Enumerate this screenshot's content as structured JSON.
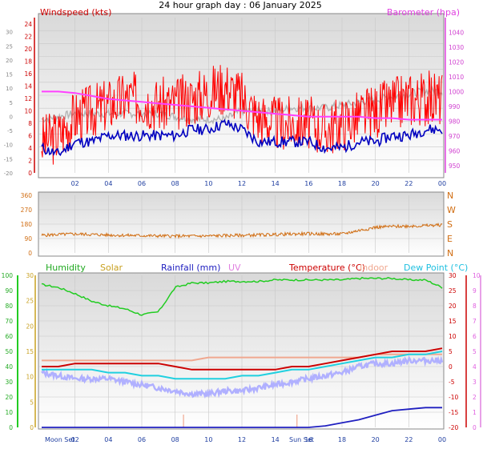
{
  "page": {
    "title": "24 hour graph day : 06 January 2025"
  },
  "x_ticks": [
    "02",
    "04",
    "06",
    "08",
    "10",
    "12",
    "14",
    "16",
    "18",
    "20",
    "22",
    "00"
  ],
  "events": {
    "moon_set": "Moon Set",
    "sun_set": "Sun Set"
  },
  "colors": {
    "wind": "#ff0000",
    "wind_avg": "#0000c0",
    "gust_grey": "#b4b4b4",
    "baro": "#ff40ff",
    "dir": "#d06c10",
    "humidity": "#22cc22",
    "solar": "#c8a020",
    "rain": "#2020c0",
    "uv": "#e080e0",
    "temperature": "#cc0000",
    "indoor": "#f0a890",
    "dewpoint": "#20d0e0",
    "apparent": "#b0b0ff"
  },
  "chart_data": [
    {
      "type": "line",
      "title": "24 hour graph day : 06 January 2025",
      "x_hours": [
        0,
        1,
        2,
        3,
        4,
        5,
        6,
        7,
        8,
        9,
        10,
        11,
        12,
        13,
        14,
        15,
        16,
        17,
        18,
        19,
        20,
        21,
        22,
        23,
        24
      ],
      "left_axis": {
        "label": "Windspeed (kts)",
        "ticks": [
          0,
          2,
          4,
          6,
          8,
          10,
          12,
          14,
          16,
          18,
          20,
          22,
          24
        ],
        "ylim": [
          0,
          25
        ]
      },
      "left_axis_outer": {
        "ticks": [
          -20,
          -15,
          -10,
          -5,
          0,
          5,
          10,
          15,
          20,
          25,
          30
        ],
        "ylim": [
          -20,
          35
        ]
      },
      "right_axis": {
        "label": "Barometer (hpa)",
        "ticks": [
          950,
          960,
          970,
          980,
          990,
          1000,
          1010,
          1020,
          1030,
          1040
        ],
        "ylim": [
          945,
          1050
        ]
      },
      "series": [
        {
          "name": "Windspeed (kts)",
          "axis": "left",
          "values": [
            5,
            6,
            9,
            10,
            11,
            12,
            12,
            11,
            11,
            12,
            13,
            14,
            12,
            9,
            8,
            8,
            8,
            7,
            8,
            9,
            10,
            11,
            12,
            12,
            12
          ]
        },
        {
          "axis": "left",
          "values": [
            4,
            3,
            5,
            5,
            6,
            6,
            6,
            6,
            6,
            7,
            7,
            8,
            7,
            5,
            5,
            5,
            5,
            4,
            4,
            5,
            5,
            6,
            6,
            7,
            7
          ]
        },
        {
          "axis": "outer",
          "values": [
            -1,
            0,
            1,
            1,
            1,
            1,
            1,
            1,
            0,
            -1,
            -1,
            -1,
            2,
            2,
            2,
            3,
            3,
            3,
            4,
            5,
            6,
            7,
            8,
            9,
            9
          ]
        },
        {
          "name": "Barometer (hpa)",
          "axis": "right",
          "values": [
            1000,
            1000,
            999,
            997,
            995,
            994,
            993,
            992,
            991,
            990,
            989,
            988,
            987,
            986,
            985,
            984,
            983,
            983,
            983,
            983,
            982,
            982,
            981,
            981,
            981
          ]
        }
      ]
    },
    {
      "type": "line",
      "x_hours": [
        0,
        1,
        2,
        3,
        4,
        5,
        6,
        7,
        8,
        9,
        10,
        11,
        12,
        13,
        14,
        15,
        16,
        17,
        18,
        19,
        20,
        21,
        22,
        23,
        24
      ],
      "left_axis": {
        "ticks": [
          0,
          90,
          180,
          270,
          360
        ],
        "ylim": [
          0,
          360
        ]
      },
      "right_axis": {
        "ticks": [
          "N",
          "E",
          "S",
          "W",
          "N"
        ]
      },
      "series": [
        {
          "axis": "left",
          "values": [
            110,
            115,
            118,
            115,
            112,
            110,
            108,
            106,
            105,
            105,
            106,
            108,
            110,
            112,
            115,
            118,
            120,
            118,
            118,
            140,
            160,
            165,
            168,
            170,
            175
          ]
        }
      ]
    },
    {
      "type": "line",
      "x_hours": [
        0,
        1,
        2,
        3,
        4,
        5,
        6,
        7,
        8,
        9,
        10,
        11,
        12,
        13,
        14,
        15,
        16,
        17,
        18,
        19,
        20,
        21,
        22,
        23,
        24
      ],
      "axes": {
        "humidity": {
          "ticks": [
            0,
            10,
            20,
            30,
            40,
            50,
            60,
            70,
            80,
            90,
            100
          ],
          "ylim": [
            0,
            100
          ]
        },
        "solar": {
          "ticks": [
            0,
            5,
            10,
            15,
            20,
            25,
            30
          ],
          "ylim": [
            0,
            30
          ]
        },
        "temperature": {
          "ticks": [
            -20,
            -15,
            -10,
            -5,
            0,
            5,
            10,
            15,
            20,
            25,
            30
          ],
          "ylim": [
            -20,
            30
          ]
        },
        "uv": {
          "ticks": [
            0,
            1,
            2,
            3,
            4,
            5,
            6,
            7,
            8,
            9,
            10
          ],
          "ylim": [
            0,
            10
          ]
        }
      },
      "legend": [
        "Humidity",
        "Solar",
        "Rainfall (mm)",
        "UV",
        "Temperature (°C)",
        "Indoor",
        "Dew Point (°C)"
      ],
      "series": [
        {
          "name": "Humidity",
          "axis": "humidity",
          "values": [
            94,
            92,
            88,
            83,
            80,
            78,
            74,
            76,
            92,
            95,
            95,
            96,
            96,
            96,
            97,
            97,
            97,
            97,
            97,
            98,
            98,
            98,
            97,
            97,
            92
          ]
        },
        {
          "name": "Rainfall (mm)",
          "axis": "temperature",
          "values": [
            -20,
            -20,
            -20,
            -20,
            -20,
            -20,
            -20,
            -20,
            -20,
            -20,
            -20,
            -20,
            -20,
            -20,
            -20,
            -20,
            -20,
            -19.5,
            -18.5,
            -17.5,
            -16,
            -14.5,
            -14,
            -13.5,
            -13.5
          ]
        },
        {
          "name": "Temperature (°C)",
          "axis": "temperature",
          "values": [
            0,
            0,
            1,
            1,
            1,
            1,
            1,
            1,
            0,
            -1,
            -1,
            -1,
            -1,
            -1,
            -1,
            0,
            0,
            1,
            2,
            3,
            4,
            5,
            5,
            5,
            6
          ]
        },
        {
          "name": "Indoor",
          "axis": "temperature",
          "values": [
            2,
            2,
            2,
            2,
            2,
            2,
            2,
            2,
            2,
            2,
            3,
            3,
            3,
            3,
            3,
            3,
            3,
            3,
            3,
            3,
            4,
            4,
            4,
            4,
            4
          ]
        },
        {
          "name": "Dew Point (°C)",
          "axis": "temperature",
          "values": [
            -1,
            -1,
            -1,
            -1,
            -2,
            -2,
            -3,
            -3,
            -4,
            -4,
            -4,
            -4,
            -3,
            -3,
            -2,
            -1,
            -1,
            0,
            1,
            2,
            3,
            3,
            4,
            4,
            5
          ]
        },
        {
          "axis": "temperature",
          "values": [
            -2,
            -3,
            -4,
            -4,
            -4,
            -5,
            -6,
            -7,
            -8,
            -9,
            -9,
            -8,
            -8,
            -7,
            -6,
            -5,
            -4,
            -3,
            -2,
            0,
            1,
            1,
            2,
            2,
            2
          ]
        }
      ]
    }
  ]
}
